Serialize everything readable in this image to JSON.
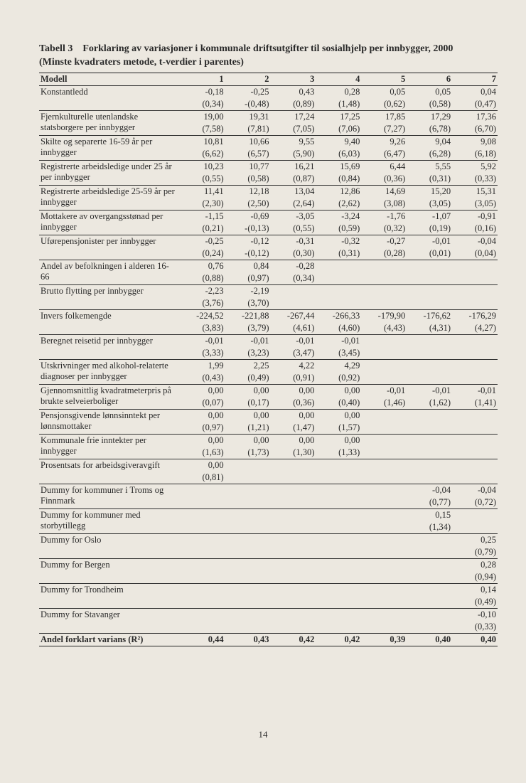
{
  "title": {
    "tabell": "Tabell 3",
    "line1": "Forklaring av variasjoner i kommunale driftsutgifter til sosialhjelp per innbygger, 2000",
    "line2": "(Minste kvadraters metode, t-verdier i parentes)"
  },
  "header": {
    "model": "Modell",
    "cols": [
      "1",
      "2",
      "3",
      "4",
      "5",
      "6",
      "7"
    ]
  },
  "rows": [
    {
      "label": "Konstantledd",
      "rule": true,
      "v": [
        "-0,18",
        "-0,25",
        "0,43",
        "0,28",
        "0,05",
        "0,05",
        "0,04"
      ],
      "t": [
        "(0,34)",
        "-(0,48)",
        "(0,89)",
        "(1,48)",
        "(0,62)",
        "(0,58)",
        "(0,47)"
      ]
    },
    {
      "label": "Fjernkulturelle utenlandske statsborgere per innbygger",
      "rule": true,
      "v": [
        "19,00",
        "19,31",
        "17,24",
        "17,25",
        "17,85",
        "17,29",
        "17,36"
      ],
      "t": [
        "(7,58)",
        "(7,81)",
        "(7,05)",
        "(7,06)",
        "(7,27)",
        "(6,78)",
        "(6,70)"
      ]
    },
    {
      "label": "Skilte og separerte 16-59 år per innbygger",
      "rule": true,
      "v": [
        "10,81",
        "10,66",
        "9,55",
        "9,40",
        "9,26",
        "9,04",
        "9,08"
      ],
      "t": [
        "(6,62)",
        "(6,57)",
        "(5,90)",
        "(6,03)",
        "(6,47)",
        "(6,28)",
        "(6,18)"
      ]
    },
    {
      "label": "Registrerte arbeidsledige under 25 år per innbygger",
      "rule": true,
      "v": [
        "10,23",
        "10,77",
        "16,21",
        "15,69",
        "6,44",
        "5,55",
        "5,92"
      ],
      "t": [
        "(0,55)",
        "(0,58)",
        "(0,87)",
        "(0,84)",
        "(0,36)",
        "(0,31)",
        "(0,33)"
      ]
    },
    {
      "label": "Registrerte arbeidsledige 25-59 år per innbygger",
      "rule": true,
      "v": [
        "11,41",
        "12,18",
        "13,04",
        "12,86",
        "14,69",
        "15,20",
        "15,31"
      ],
      "t": [
        "(2,30)",
        "(2,50)",
        "(2,64)",
        "(2,62)",
        "(3,08)",
        "(3,05)",
        "(3,05)"
      ]
    },
    {
      "label": "Mottakere av overgangsstønad per innbygger",
      "rule": true,
      "v": [
        "-1,15",
        "-0,69",
        "-3,05",
        "-3,24",
        "-1,76",
        "-1,07",
        "-0,91"
      ],
      "t": [
        "(0,21)",
        "-(0,13)",
        "(0,55)",
        "(0,59)",
        "(0,32)",
        "(0,19)",
        "(0,16)"
      ]
    },
    {
      "label": "Uførepensjonister per innbygger",
      "rule": true,
      "v": [
        "-0,25",
        "-0,12",
        "-0,31",
        "-0,32",
        "-0,27",
        "-0,01",
        "-0,04"
      ],
      "t": [
        "(0,24)",
        "-(0,12)",
        "(0,30)",
        "(0,31)",
        "(0,28)",
        "(0,01)",
        "(0,04)"
      ]
    },
    {
      "label": "Andel av befolkningen i alderen 16-66",
      "rule": true,
      "v": [
        "0,76",
        "0,84",
        "-0,28",
        "",
        "",
        "",
        ""
      ],
      "t": [
        "(0,88)",
        "(0,97)",
        "(0,34)",
        "",
        "",
        "",
        ""
      ]
    },
    {
      "label": "Brutto flytting per innbygger",
      "rule": true,
      "v": [
        "-2,23",
        "-2,19",
        "",
        "",
        "",
        "",
        ""
      ],
      "t": [
        "(3,76)",
        "(3,70)",
        "",
        "",
        "",
        "",
        ""
      ]
    },
    {
      "label": "Invers folkemengde",
      "rule": true,
      "v": [
        "-224,52",
        "-221,88",
        "-267,44",
        "-266,33",
        "-179,90",
        "-176,62",
        "-176,29"
      ],
      "t": [
        "(3,83)",
        "(3,79)",
        "(4,61)",
        "(4,60)",
        "(4,43)",
        "(4,31)",
        "(4,27)"
      ]
    },
    {
      "label": "Beregnet reisetid per innbygger",
      "rule": true,
      "v": [
        "-0,01",
        "-0,01",
        "-0,01",
        "-0,01",
        "",
        "",
        ""
      ],
      "t": [
        "(3,33)",
        "(3,23)",
        "(3,47)",
        "(3,45)",
        "",
        "",
        ""
      ]
    },
    {
      "label": "Utskrivninger med alkohol-relaterte diagnoser per innbygger",
      "rule": true,
      "v": [
        "1,99",
        "2,25",
        "4,22",
        "4,29",
        "",
        "",
        ""
      ],
      "t": [
        "(0,43)",
        "(0,49)",
        "(0,91)",
        "(0,92)",
        "",
        "",
        ""
      ]
    },
    {
      "label": "Gjennomsnittlig kvadratmeterpris på brukte selveierboliger",
      "rule": true,
      "v": [
        "0,00",
        "0,00",
        "0,00",
        "0,00",
        "-0,01",
        "-0,01",
        "-0,01"
      ],
      "t": [
        "(0,07)",
        "(0,17)",
        "(0,36)",
        "(0,40)",
        "(1,46)",
        "(1,62)",
        "(1,41)"
      ]
    },
    {
      "label": "Pensjonsgivende lønnsinntekt per lønnsmottaker",
      "rule": true,
      "v": [
        "0,00",
        "0,00",
        "0,00",
        "0,00",
        "",
        "",
        ""
      ],
      "t": [
        "(0,97)",
        "(1,21)",
        "(1,47)",
        "(1,57)",
        "",
        "",
        ""
      ]
    },
    {
      "label": "Kommunale frie inntekter per innbygger",
      "rule": true,
      "v": [
        "0,00",
        "0,00",
        "0,00",
        "0,00",
        "",
        "",
        ""
      ],
      "t": [
        "(1,63)",
        "(1,73)",
        "(1,30)",
        "(1,33)",
        "",
        "",
        ""
      ]
    },
    {
      "label": "Prosentsats for arbeidsgiveravgift",
      "rule": true,
      "v": [
        "0,00",
        "",
        "",
        "",
        "",
        "",
        ""
      ],
      "t": [
        "(0,81)",
        "",
        "",
        "",
        "",
        "",
        ""
      ]
    },
    {
      "label": "Dummy for kommuner i Troms og Finnmark",
      "rule": true,
      "v": [
        "",
        "",
        "",
        "",
        "",
        "-0,04",
        "-0,04"
      ],
      "t": [
        "",
        "",
        "",
        "",
        "",
        "(0,77)",
        "(0,72)"
      ]
    },
    {
      "label": "Dummy for kommuner med storbytillegg",
      "rule": true,
      "v": [
        "",
        "",
        "",
        "",
        "",
        "0,15",
        ""
      ],
      "t": [
        "",
        "",
        "",
        "",
        "",
        "(1,34)",
        ""
      ]
    },
    {
      "label": "Dummy for Oslo",
      "rule": true,
      "v": [
        "",
        "",
        "",
        "",
        "",
        "",
        "0,25"
      ],
      "t": [
        "",
        "",
        "",
        "",
        "",
        "",
        "(0,79)"
      ]
    },
    {
      "label": "Dummy for Bergen",
      "rule": true,
      "v": [
        "",
        "",
        "",
        "",
        "",
        "",
        "0,28"
      ],
      "t": [
        "",
        "",
        "",
        "",
        "",
        "",
        "(0,94)"
      ]
    },
    {
      "label": "Dummy for Trondheim",
      "rule": true,
      "v": [
        "",
        "",
        "",
        "",
        "",
        "",
        "0,14"
      ],
      "t": [
        "",
        "",
        "",
        "",
        "",
        "",
        "(0,49)"
      ]
    },
    {
      "label": "Dummy for Stavanger",
      "rule": true,
      "v": [
        "",
        "",
        "",
        "",
        "",
        "",
        "-0,10"
      ],
      "t": [
        "",
        "",
        "",
        "",
        "",
        "",
        "(0,33)"
      ]
    }
  ],
  "r2": {
    "label": "Andel forklart varians (R²)",
    "cols": [
      "0,44",
      "0,43",
      "0,42",
      "0,42",
      "0,39",
      "0,40",
      "0,40"
    ]
  },
  "page_number": "14"
}
